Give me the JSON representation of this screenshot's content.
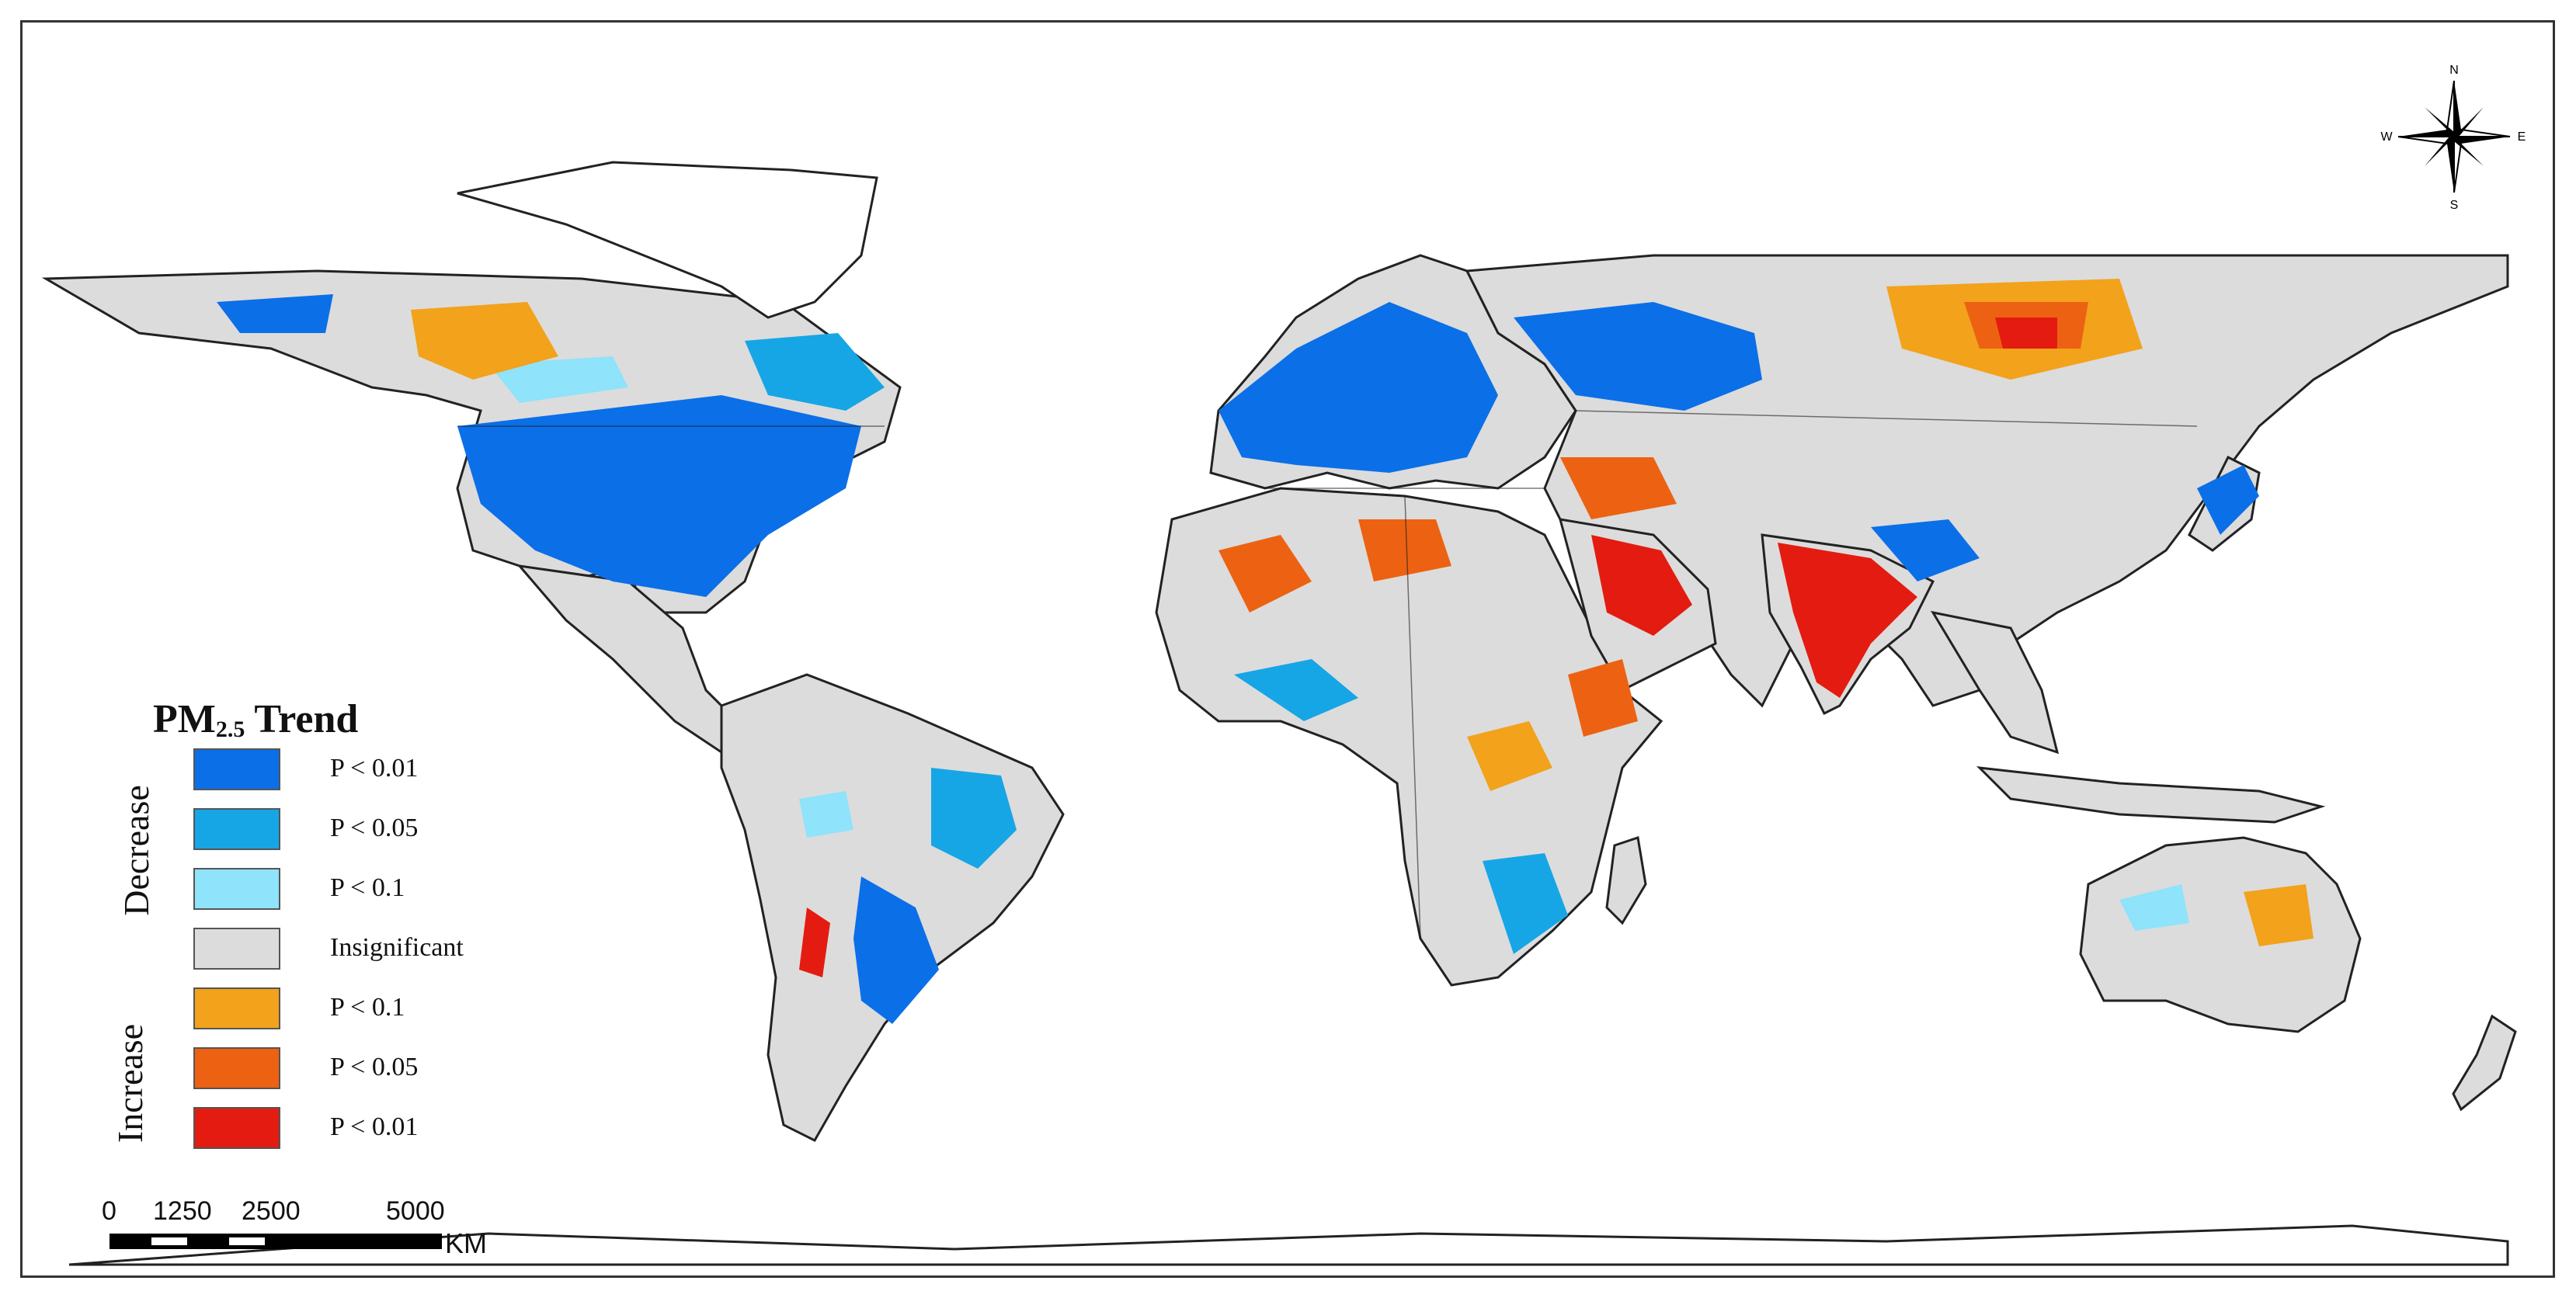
{
  "legend": {
    "title": "PM",
    "title_sub": "2.5",
    "title_suffix": " Trend",
    "groups": {
      "decrease": "Decrease",
      "increase": "Increase"
    },
    "items": [
      {
        "label": "P < 0.01",
        "color": "#0b6fe8"
      },
      {
        "label": "P < 0.05",
        "color": "#16a6e6"
      },
      {
        "label": "P < 0.1",
        "color": "#8fe3fa"
      },
      {
        "label": "Insignificant",
        "color": "#dcdcdc"
      },
      {
        "label": "P < 0.1",
        "color": "#f2a21b"
      },
      {
        "label": "P < 0.05",
        "color": "#ec6212"
      },
      {
        "label": "P < 0.01",
        "color": "#e41b10"
      }
    ]
  },
  "scalebar": {
    "ticks": [
      "0",
      "1250",
      "2500",
      "5000"
    ],
    "unit": "KM"
  },
  "compass": {
    "n": "N",
    "s": "S",
    "e": "E",
    "w": "W"
  }
}
